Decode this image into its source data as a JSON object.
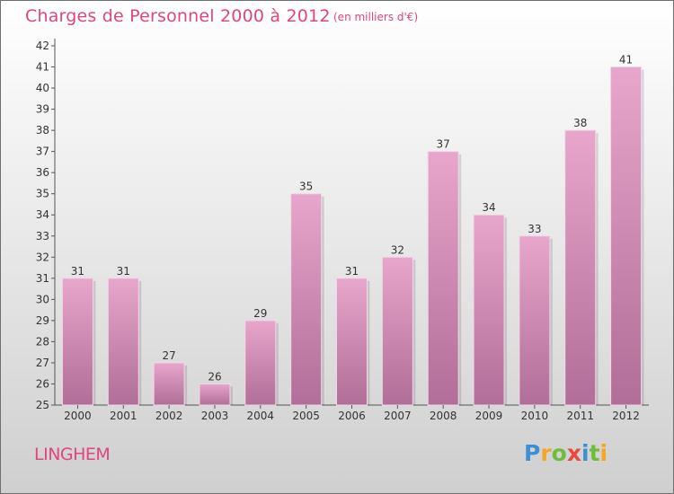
{
  "title": "Charges de Personnel 2000 à 2012",
  "subtitle": "(en milliers d'€)",
  "town": "LINGHEM",
  "logo_letters": [
    {
      "ch": "P",
      "color": "#3b8fd6"
    },
    {
      "ch": "r",
      "color": "#f5a623"
    },
    {
      "ch": "o",
      "color": "#6cbf3a"
    },
    {
      "ch": "x",
      "color": "#e84b3c"
    },
    {
      "ch": "i",
      "color": "#3b8fd6"
    },
    {
      "ch": "t",
      "color": "#6cbf3a"
    },
    {
      "ch": "i",
      "color": "#f5a623"
    }
  ],
  "chart_data": {
    "type": "bar",
    "categories": [
      "2000",
      "2001",
      "2002",
      "2003",
      "2004",
      "2005",
      "2006",
      "2007",
      "2008",
      "2009",
      "2010",
      "2011",
      "2012"
    ],
    "values": [
      31,
      31,
      27,
      26,
      29,
      35,
      31,
      32,
      37,
      34,
      33,
      38,
      41
    ],
    "ylim": [
      25,
      42
    ],
    "yticks": [
      25,
      26,
      27,
      28,
      29,
      30,
      31,
      32,
      33,
      34,
      35,
      36,
      37,
      38,
      39,
      40,
      41,
      42
    ],
    "bar_color_top": "#e8a6cc",
    "bar_color_bottom": "#b06e98",
    "grid": false,
    "data_labels": true
  }
}
